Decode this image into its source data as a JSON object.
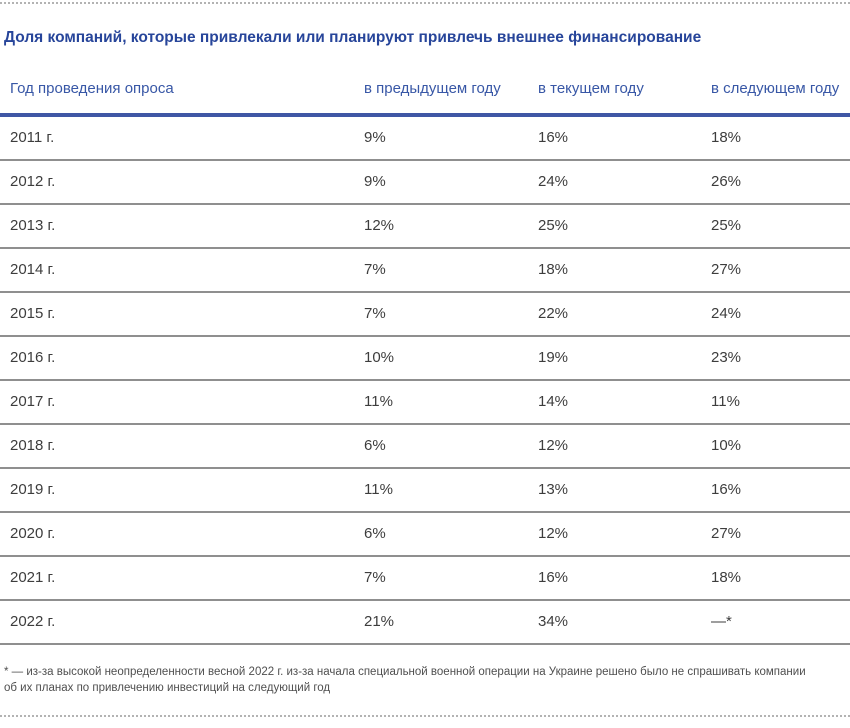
{
  "title": "Доля компаний, которые привлекали или планируют привлечь внешнее финансирование",
  "footnote": "* — из-за высокой неопределенности весной 2022 г. из-за начала специальной военной операции на Украине решено было не спрашивать компании об их планах по привлечению инвестиций на следующий год",
  "colors": {
    "title_blue": "#27459a",
    "header_blue": "#3857a6",
    "header_rule_blue": "#3f57a5",
    "row_rule_gray": "#8f8f8f",
    "body_text": "#3d3d3d",
    "footnote_gray": "#4f4f4f",
    "dotted_divider_gray": "#b3b3b3"
  },
  "chart_data": {
    "type": "table",
    "title": "Доля компаний, которые привлекали или планируют привлечь внешнее финансирование",
    "columns": [
      "Год проведения опроса",
      "в предыдущем году",
      "в текущем году",
      "в следующем году"
    ],
    "rows": [
      {
        "survey_year": "2011 г.",
        "values": [
          "9%",
          "16%",
          "18%"
        ]
      },
      {
        "survey_year": "2012 г.",
        "values": [
          "9%",
          "24%",
          "26%"
        ]
      },
      {
        "survey_year": "2013 г.",
        "values": [
          "12%",
          "25%",
          "25%"
        ]
      },
      {
        "survey_year": "2014 г.",
        "values": [
          "7%",
          "18%",
          "27%"
        ]
      },
      {
        "survey_year": "2015 г.",
        "values": [
          "7%",
          "22%",
          "24%"
        ]
      },
      {
        "survey_year": "2016 г.",
        "values": [
          "10%",
          "19%",
          "23%"
        ]
      },
      {
        "survey_year": "2017 г.",
        "values": [
          "11%",
          "14%",
          "11%"
        ]
      },
      {
        "survey_year": "2018 г.",
        "values": [
          "6%",
          "12%",
          "10%"
        ]
      },
      {
        "survey_year": "2019 г.",
        "values": [
          "11%",
          "13%",
          "16%"
        ]
      },
      {
        "survey_year": "2020 г.",
        "values": [
          "6%",
          "12%",
          "27%"
        ]
      },
      {
        "survey_year": "2021 г.",
        "values": [
          "7%",
          "16%",
          "18%"
        ]
      },
      {
        "survey_year": "2022 г.",
        "values": [
          "21%",
          "34%",
          "—*"
        ]
      }
    ]
  }
}
